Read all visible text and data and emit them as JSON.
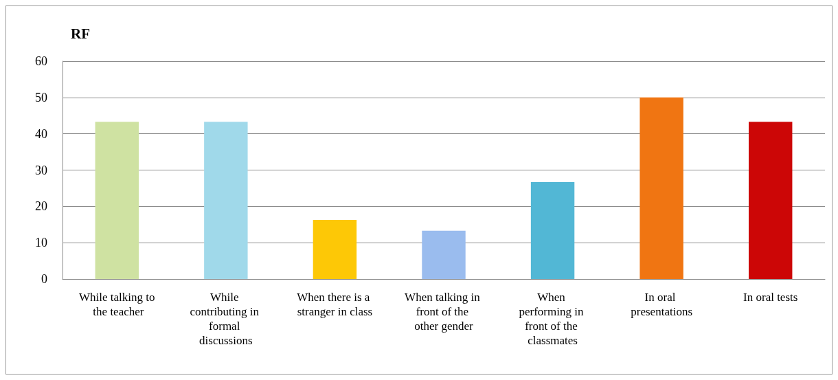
{
  "chart_data": {
    "type": "bar",
    "ylabel": "RF",
    "categories": [
      "While talking to the teacher",
      "While contributing in formal discussions",
      "When there is a stranger in class",
      "When talking in front of the other gender",
      "When performing in front of the classmates",
      "In oral presentations",
      "In oral tests"
    ],
    "values": [
      43.3,
      43.3,
      16.3,
      13.3,
      26.7,
      50,
      43.3
    ],
    "colors": [
      "#cfe2a2",
      "#a0d9ea",
      "#fdc806",
      "#9abcee",
      "#52b7d5",
      "#f07512",
      "#cc0606"
    ],
    "ylim": [
      0,
      60
    ],
    "yticks": [
      0,
      10,
      20,
      30,
      40,
      50,
      60
    ],
    "grid": "y"
  }
}
